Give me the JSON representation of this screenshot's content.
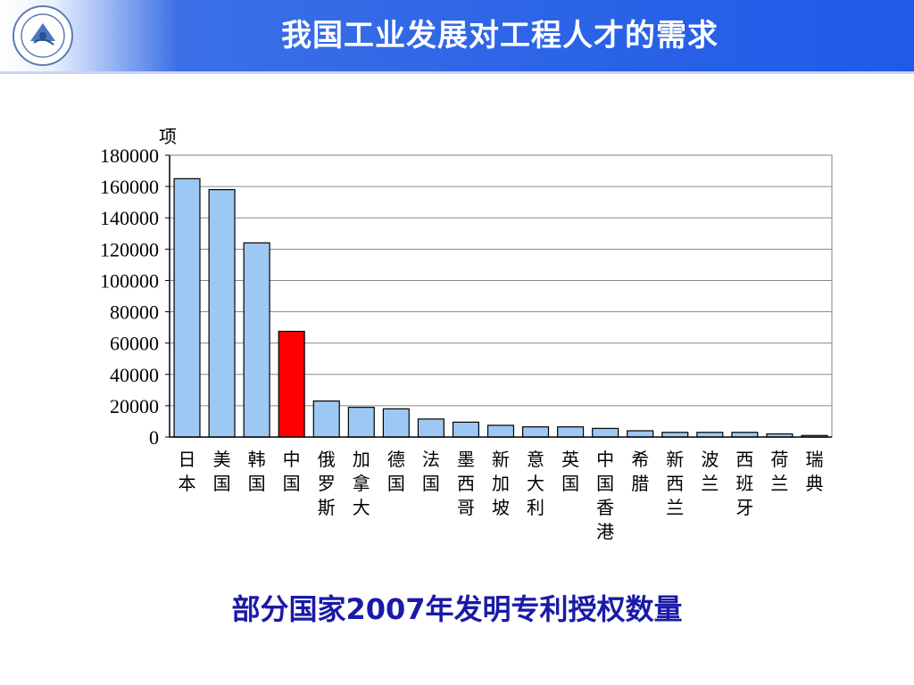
{
  "slide": {
    "title": "我国工业发展对工程人才的需求",
    "caption": "部分国家2007年发明专利授权数量"
  },
  "colors": {
    "header_blue": "#1f5ae8",
    "bar_default": "#9ec8f4",
    "bar_highlight": "#ff0000",
    "caption": "#1a1aa8"
  },
  "chart_data": {
    "type": "bar",
    "title": "",
    "ylabel": "项",
    "xlabel": "",
    "ylim": [
      0,
      180000
    ],
    "yticks": [
      "0",
      "20000",
      "40000",
      "60000",
      "80000",
      "100000",
      "120000",
      "140000",
      "160000",
      "180000"
    ],
    "grid": true,
    "categories": [
      "日本",
      "美国",
      "韩国",
      "中国",
      "俄罗斯",
      "加拿大",
      "德国",
      "法国",
      "墨西哥",
      "新加坡",
      "意大利",
      "英国",
      "中国香港",
      "希腊",
      "新西兰",
      "波兰",
      "西班牙",
      "荷兰",
      "瑞典"
    ],
    "values": [
      165000,
      158000,
      124000,
      67500,
      23000,
      19000,
      18000,
      11500,
      9500,
      7500,
      6500,
      6500,
      5500,
      4000,
      3000,
      3000,
      3000,
      2000,
      1000
    ],
    "highlight_index": 3
  }
}
